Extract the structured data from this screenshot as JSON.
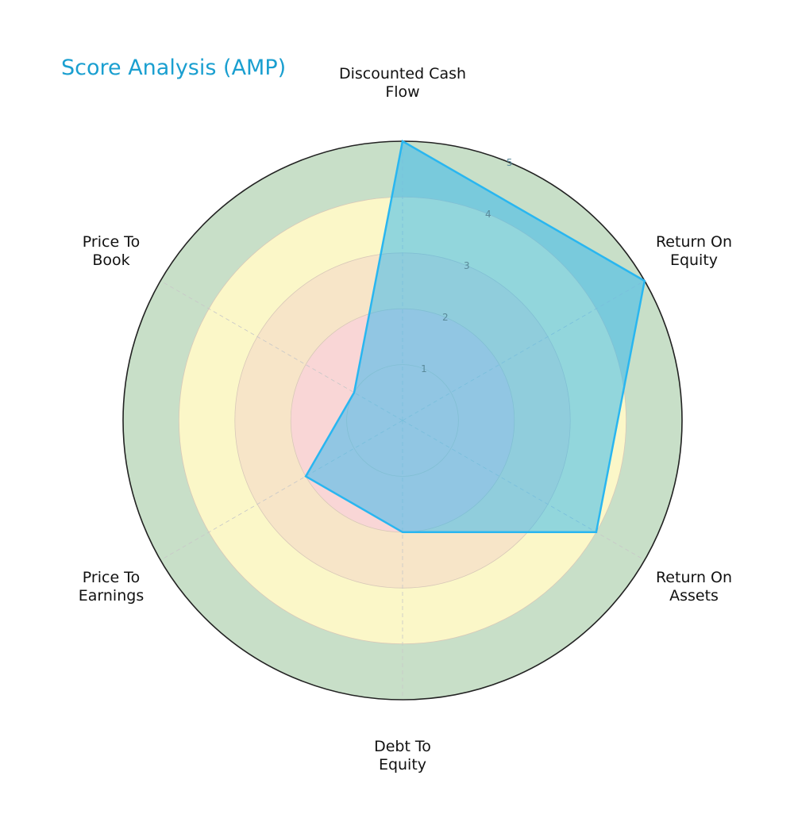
{
  "chart_data": {
    "type": "radar",
    "title": "Score Analysis (AMP)",
    "categories": [
      "Discounted Cash\nFlow",
      "Return On\nEquity",
      "Return On\nAssets",
      "Debt To\nEquity",
      "Price To\nEarnings",
      "Price To\nBook"
    ],
    "series": [
      {
        "name": "AMP",
        "values": [
          5,
          5,
          4,
          2,
          2,
          1
        ]
      }
    ],
    "rlim": [
      0,
      5
    ],
    "rticks": [
      "1",
      "2",
      "3",
      "4",
      "5"
    ],
    "band_colors": [
      "#f9d6d6",
      "#f7e5c8",
      "#fbf7c8",
      "#c8dfc8"
    ],
    "series_color": "#29b6f0",
    "title_color": "#1a9fd0"
  }
}
